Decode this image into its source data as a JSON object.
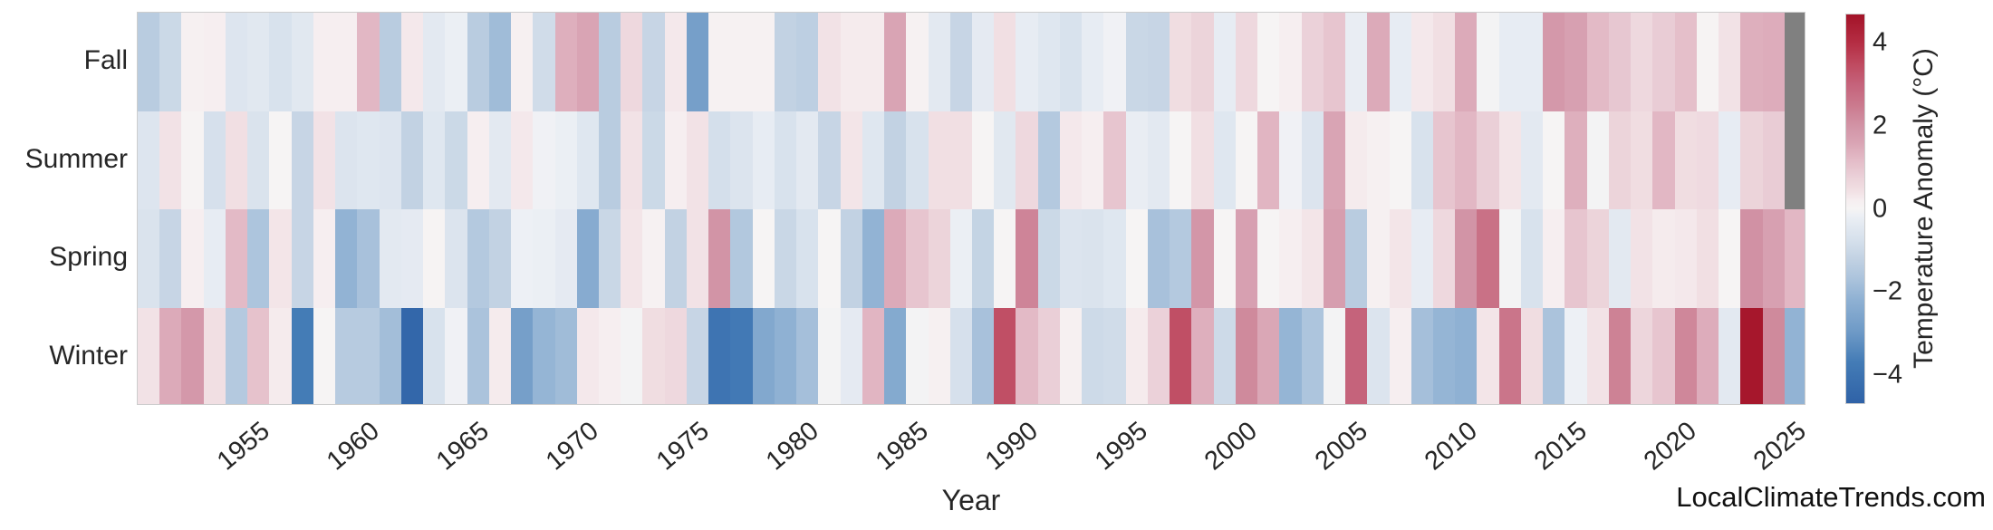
{
  "watermark": {
    "text": "LocalClimateTrends.com"
  },
  "axes": {
    "xlabel": "Year",
    "x_tick_labels": [
      "1955",
      "1960",
      "1965",
      "1970",
      "1975",
      "1980",
      "1985",
      "1990",
      "1995",
      "2000",
      "2005",
      "2010",
      "2015",
      "2020",
      "2025"
    ],
    "row_labels": [
      "Fall",
      "Summer",
      "Spring",
      "Winter"
    ]
  },
  "colorbar": {
    "label": "Temperature Anomaly (°C)",
    "tick_labels": [
      "4",
      "2",
      "0",
      "−2",
      "−4"
    ],
    "tick_values": [
      4,
      2,
      0,
      -2,
      -4
    ],
    "vmin": -4.7,
    "vmax": 4.7
  },
  "chart_data": {
    "type": "heatmap",
    "title": "",
    "xlabel": "Year",
    "ylabel": "",
    "year_start": 1950,
    "year_end": 2025,
    "x_tick_years": [
      1955,
      1960,
      1965,
      1970,
      1975,
      1980,
      1985,
      1990,
      1995,
      2000,
      2005,
      2010,
      2015,
      2020,
      2025
    ],
    "rows": [
      "Fall",
      "Summer",
      "Spring",
      "Winter"
    ],
    "value_units": "°C anomaly",
    "missing_color": "#808080",
    "colormap_stops": [
      [
        -4.7,
        "#2f62a7"
      ],
      [
        -3.7,
        "#447cb6"
      ],
      [
        -3.0,
        "#6d99c6"
      ],
      [
        -2.2,
        "#8fb1d3"
      ],
      [
        -1.7,
        "#abc3dc"
      ],
      [
        -1.2,
        "#c2d2e3"
      ],
      [
        -0.8,
        "#d4dfeb"
      ],
      [
        -0.4,
        "#e3e9f1"
      ],
      [
        -0.15,
        "#edf0f5"
      ],
      [
        0,
        "#f6f4f4"
      ],
      [
        0.2,
        "#f6eef0"
      ],
      [
        0.45,
        "#f1dfe3"
      ],
      [
        0.8,
        "#eacfd7"
      ],
      [
        1.2,
        "#e3bac6"
      ],
      [
        1.6,
        "#d9a4b4"
      ],
      [
        2.0,
        "#d294a6"
      ],
      [
        2.5,
        "#cb7a8e"
      ],
      [
        3.0,
        "#c5637b"
      ],
      [
        3.5,
        "#bf4a60"
      ],
      [
        4.0,
        "#b52e44"
      ],
      [
        4.7,
        "#a31328"
      ]
    ],
    "series": [
      {
        "name": "Fall",
        "values": [
          -1.4,
          -1.0,
          0.15,
          0.2,
          -0.55,
          -0.45,
          -0.7,
          -0.45,
          0.2,
          0.2,
          1.25,
          -1.4,
          0.3,
          -0.4,
          -0.2,
          -1.4,
          -1.9,
          0.15,
          -0.9,
          1.4,
          1.6,
          -1.4,
          0.6,
          -1.1,
          0.3,
          -2.8,
          0.1,
          0.1,
          0.1,
          -1.2,
          -1.3,
          0.4,
          0.25,
          0.25,
          1.6,
          0.1,
          -0.4,
          -1.1,
          -0.35,
          0.45,
          -0.3,
          -0.5,
          -0.7,
          -0.3,
          -0.1,
          -1.05,
          -1.1,
          0.5,
          0.7,
          -0.3,
          0.6,
          0.0,
          0.2,
          0.75,
          1.0,
          -0.25,
          1.5,
          -0.3,
          0.3,
          0.45,
          1.5,
          -0.05,
          -0.3,
          -0.3,
          1.9,
          1.7,
          1.2,
          0.95,
          0.6,
          0.85,
          1.1,
          0.05,
          0.4,
          1.4,
          1.45,
          null
        ]
      },
      {
        "name": "Summer",
        "values": [
          -0.55,
          0.4,
          0.05,
          -0.75,
          0.45,
          -0.65,
          0.0,
          -1.1,
          0.4,
          -0.6,
          -0.5,
          -0.55,
          -1.2,
          -0.5,
          -1.0,
          0.2,
          -0.4,
          0.3,
          -0.1,
          -0.2,
          -0.5,
          -1.4,
          0.4,
          -1.0,
          0.2,
          0.4,
          -0.8,
          -0.6,
          -0.3,
          -0.7,
          -0.4,
          -1.1,
          0.35,
          -0.5,
          -1.2,
          -0.7,
          0.45,
          0.45,
          0.0,
          -0.45,
          0.6,
          -1.5,
          0.3,
          0.2,
          1.0,
          -0.25,
          -0.4,
          0.0,
          0.45,
          -0.5,
          0.0,
          1.3,
          -0.1,
          -0.6,
          1.6,
          0.25,
          0.15,
          0.0,
          -0.7,
          1.0,
          1.25,
          0.8,
          0.35,
          -0.4,
          0.0,
          1.4,
          -0.05,
          0.7,
          0.5,
          1.25,
          0.5,
          0.55,
          -0.3,
          0.7,
          0.85,
          null
        ]
      },
      {
        "name": "Spring",
        "values": [
          -0.65,
          -1.1,
          0.2,
          -0.3,
          1.2,
          -1.65,
          0.35,
          -1.1,
          0.2,
          -2.15,
          -1.75,
          -0.4,
          -0.35,
          0.05,
          -0.6,
          -1.5,
          -1.2,
          -0.15,
          -0.2,
          -0.35,
          -2.4,
          -1.05,
          0.35,
          0.1,
          -1.2,
          0.4,
          2.0,
          -1.55,
          0.0,
          -1.05,
          -0.7,
          0.0,
          -1.2,
          -2.15,
          1.5,
          1.0,
          0.7,
          -0.2,
          -1.15,
          0.0,
          2.3,
          -1.0,
          -0.6,
          -0.65,
          -0.5,
          0.0,
          -1.75,
          -1.5,
          1.95,
          0.0,
          1.7,
          0.0,
          0.2,
          0.35,
          1.75,
          -1.4,
          0.15,
          0.35,
          -0.3,
          0.6,
          2.0,
          2.7,
          -0.05,
          -0.7,
          0.2,
          1.0,
          0.7,
          -0.4,
          0.4,
          0.25,
          0.3,
          0.45,
          0.0,
          2.05,
          1.7,
          1.25
        ]
      },
      {
        "name": "Winter",
        "values": [
          0.4,
          1.5,
          1.9,
          0.45,
          -1.5,
          1.05,
          0.25,
          -3.7,
          0.0,
          -1.45,
          -1.45,
          -1.85,
          -4.5,
          -0.7,
          -0.1,
          -1.7,
          0.25,
          -2.8,
          -2.1,
          -1.9,
          0.3,
          0.2,
          -0.05,
          0.5,
          0.6,
          -1.1,
          -4.0,
          -3.8,
          -2.5,
          -2.2,
          -1.8,
          -0.05,
          -0.35,
          1.3,
          -2.45,
          -0.05,
          0.15,
          -0.75,
          -1.75,
          3.4,
          1.2,
          0.8,
          0.15,
          -0.95,
          -0.9,
          0.25,
          0.75,
          3.4,
          1.4,
          -0.95,
          2.2,
          1.55,
          -2.1,
          -1.65,
          -0.05,
          3.0,
          -0.6,
          0.2,
          -1.8,
          -2.1,
          -2.2,
          0.35,
          2.6,
          0.5,
          -1.7,
          -0.15,
          0.4,
          2.35,
          0.65,
          1.0,
          2.25,
          1.45,
          -0.4,
          4.6,
          2.2,
          -2.15
        ]
      }
    ]
  }
}
